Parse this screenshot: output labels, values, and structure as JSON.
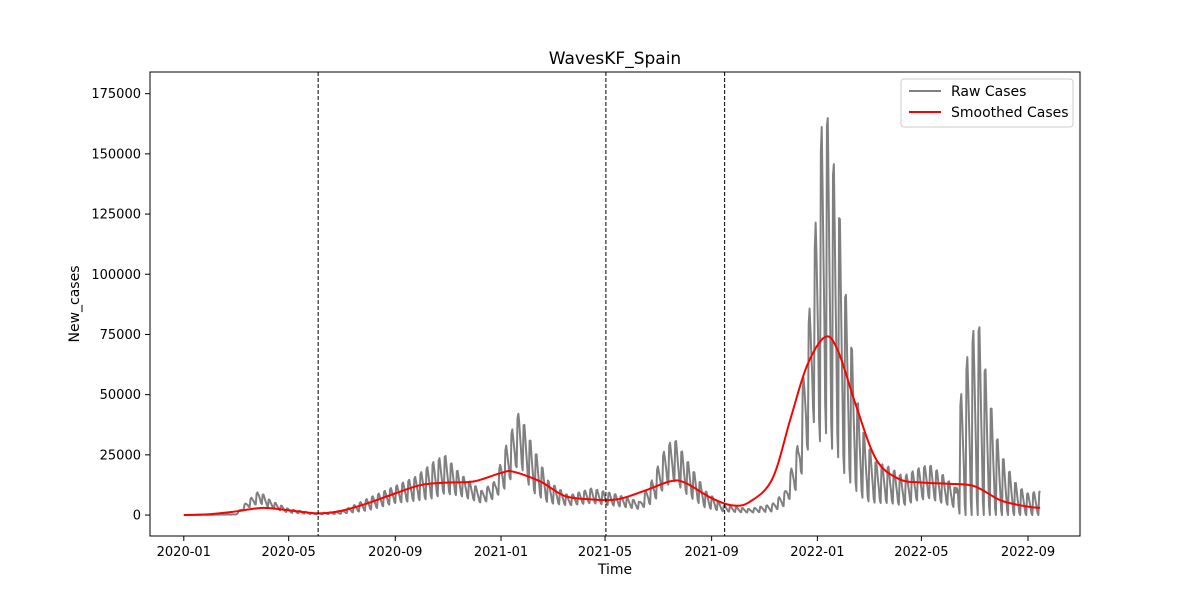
{
  "chart_data": {
    "type": "line",
    "title": "WavesKF_Spain",
    "xlabel": "Time",
    "ylabel": "New_cases",
    "xlim": [
      "2019-11-23",
      "2022-10-31"
    ],
    "ylim": [
      -8700,
      184000
    ],
    "x_ticks": [
      "2020-01",
      "2020-05",
      "2020-09",
      "2021-01",
      "2021-05",
      "2021-09",
      "2022-01",
      "2022-05",
      "2022-09"
    ],
    "x_tick_dates": [
      "2020-01-01",
      "2020-05-01",
      "2020-09-01",
      "2021-01-01",
      "2021-05-01",
      "2021-09-01",
      "2022-01-01",
      "2022-05-01",
      "2022-09-01"
    ],
    "y_ticks": [
      0,
      25000,
      50000,
      75000,
      100000,
      125000,
      150000,
      175000
    ],
    "y_tick_labels": [
      "0",
      "25000",
      "50000",
      "75000",
      "100000",
      "125000",
      "150000",
      "175000"
    ],
    "grid": false,
    "legend": "top-right",
    "vertical_lines": [
      "2020-06-04",
      "2021-05-02",
      "2021-09-16"
    ],
    "series": [
      {
        "name": "Raw Cases",
        "color": "#808080",
        "style": "oscillating",
        "points": [
          [
            "2020-01-01",
            0,
            0
          ],
          [
            "2020-03-01",
            200,
            300
          ],
          [
            "2020-03-15",
            3000,
            6000
          ],
          [
            "2020-03-28",
            5000,
            10000
          ],
          [
            "2020-04-10",
            3000,
            6000
          ],
          [
            "2020-05-01",
            1000,
            2500
          ],
          [
            "2020-06-01",
            300,
            700
          ],
          [
            "2020-07-01",
            500,
            1500
          ],
          [
            "2020-08-01",
            2000,
            7000
          ],
          [
            "2020-09-01",
            5000,
            12000
          ],
          [
            "2020-09-25",
            6000,
            16000
          ],
          [
            "2020-10-15",
            7000,
            22000
          ],
          [
            "2020-10-28",
            9000,
            25000
          ],
          [
            "2020-11-15",
            8000,
            17000
          ],
          [
            "2020-12-10",
            5000,
            10000
          ],
          [
            "2020-12-25",
            7000,
            14000
          ],
          [
            "2021-01-08",
            12000,
            30000
          ],
          [
            "2021-01-22",
            22000,
            43000
          ],
          [
            "2021-02-05",
            10000,
            30000
          ],
          [
            "2021-02-25",
            5000,
            14000
          ],
          [
            "2021-03-20",
            4000,
            8000
          ],
          [
            "2021-04-15",
            5000,
            11000
          ],
          [
            "2021-05-10",
            4000,
            9000
          ],
          [
            "2021-06-10",
            2500,
            5500
          ],
          [
            "2021-06-25",
            5000,
            15000
          ],
          [
            "2021-07-10",
            12000,
            28000
          ],
          [
            "2021-07-20",
            14000,
            32000
          ],
          [
            "2021-08-05",
            8000,
            22000
          ],
          [
            "2021-08-25",
            3000,
            10000
          ],
          [
            "2021-09-15",
            1500,
            4000
          ],
          [
            "2021-10-15",
            1000,
            2500
          ],
          [
            "2021-11-10",
            1500,
            4500
          ],
          [
            "2021-11-25",
            4000,
            10000
          ],
          [
            "2021-12-10",
            12000,
            30000
          ],
          [
            "2021-12-20",
            25000,
            75000
          ],
          [
            "2021-12-27",
            40000,
            100000
          ],
          [
            "2022-01-03",
            30000,
            150000
          ],
          [
            "2022-01-10",
            35000,
            176000
          ],
          [
            "2022-01-17",
            28000,
            150000
          ],
          [
            "2022-01-24",
            25000,
            140000
          ],
          [
            "2022-01-31",
            18000,
            100000
          ],
          [
            "2022-02-07",
            14000,
            80000
          ],
          [
            "2022-02-15",
            10000,
            50000
          ],
          [
            "2022-02-25",
            6000,
            32000
          ],
          [
            "2022-03-10",
            5000,
            22000
          ],
          [
            "2022-03-25",
            5000,
            20000
          ],
          [
            "2022-04-10",
            4000,
            16000
          ],
          [
            "2022-04-25",
            6000,
            19000
          ],
          [
            "2022-05-10",
            7000,
            21000
          ],
          [
            "2022-05-25",
            5000,
            17000
          ],
          [
            "2022-06-10",
            3000,
            11000
          ],
          [
            "2022-06-15",
            0,
            48000
          ],
          [
            "2022-06-25",
            0,
            70000
          ],
          [
            "2022-07-05",
            0,
            83000
          ],
          [
            "2022-07-15",
            0,
            58000
          ],
          [
            "2022-07-25",
            0,
            35000
          ],
          [
            "2022-08-05",
            0,
            22000
          ],
          [
            "2022-08-20",
            0,
            12000
          ],
          [
            "2022-09-01",
            0,
            9000
          ],
          [
            "2022-09-15",
            0,
            10000
          ]
        ]
      },
      {
        "name": "Smoothed Cases",
        "color": "#ff0000",
        "style": "smooth",
        "points": [
          [
            "2020-01-01",
            0
          ],
          [
            "2020-02-01",
            400
          ],
          [
            "2020-03-01",
            1500
          ],
          [
            "2020-04-01",
            3000
          ],
          [
            "2020-05-01",
            2000
          ],
          [
            "2020-06-04",
            700
          ],
          [
            "2020-07-01",
            1800
          ],
          [
            "2020-08-01",
            5000
          ],
          [
            "2020-09-01",
            9000
          ],
          [
            "2020-10-01",
            12500
          ],
          [
            "2020-11-01",
            13500
          ],
          [
            "2020-12-01",
            14000
          ],
          [
            "2021-01-01",
            17500
          ],
          [
            "2021-01-15",
            18000
          ],
          [
            "2021-02-15",
            14000
          ],
          [
            "2021-03-15",
            8000
          ],
          [
            "2021-04-15",
            6500
          ],
          [
            "2021-05-15",
            6500
          ],
          [
            "2021-06-15",
            10000
          ],
          [
            "2021-07-15",
            14000
          ],
          [
            "2021-08-01",
            13500
          ],
          [
            "2021-09-01",
            7000
          ],
          [
            "2021-09-25",
            4000
          ],
          [
            "2021-10-15",
            5500
          ],
          [
            "2021-11-10",
            15000
          ],
          [
            "2021-12-01",
            40000
          ],
          [
            "2021-12-20",
            62000
          ],
          [
            "2022-01-10",
            74000
          ],
          [
            "2022-01-25",
            68000
          ],
          [
            "2022-02-15",
            45000
          ],
          [
            "2022-03-10",
            23000
          ],
          [
            "2022-04-05",
            15000
          ],
          [
            "2022-05-01",
            13500
          ],
          [
            "2022-06-01",
            13000
          ],
          [
            "2022-07-01",
            12000
          ],
          [
            "2022-08-01",
            6000
          ],
          [
            "2022-09-01",
            3500
          ],
          [
            "2022-09-15",
            3000
          ]
        ]
      }
    ]
  }
}
